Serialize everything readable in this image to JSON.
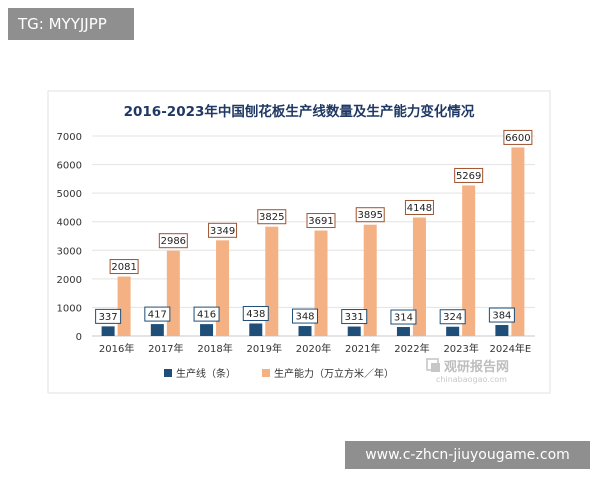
{
  "overlay": {
    "tag_text": "TG: MYYJJPP",
    "footer_text": "www.c-zhcn-jiuyougame.com"
  },
  "watermark": {
    "brand_cn": "观研报告网",
    "brand_url": "chinabaogao.com"
  },
  "colors": {
    "bar_dark": "#1f4e79",
    "bar_orange": "#f4b183",
    "title": "#1f3864",
    "grid": "#e3e3e3"
  },
  "chart_data": {
    "type": "bar",
    "title": "2016-2023年中国刨花板生产线数量及生产能力变化情况",
    "categories": [
      "2016年",
      "2017年",
      "2018年",
      "2019年",
      "2020年",
      "2021年",
      "2022年",
      "2023年",
      "2024年E"
    ],
    "series": [
      {
        "name": "生产线（条）",
        "values": [
          337,
          417,
          416,
          438,
          348,
          331,
          314,
          324,
          384
        ]
      },
      {
        "name": "生产能力（万立方米／年）",
        "values": [
          2081,
          2986,
          3349,
          3825,
          3691,
          3895,
          4148,
          5269,
          6600
        ]
      }
    ],
    "ylim": [
      0,
      7000
    ],
    "yticks": [
      "0",
      "1000",
      "2000",
      "3000",
      "4000",
      "5000",
      "6000",
      "7000"
    ],
    "grid": true,
    "legend": "bottom"
  }
}
